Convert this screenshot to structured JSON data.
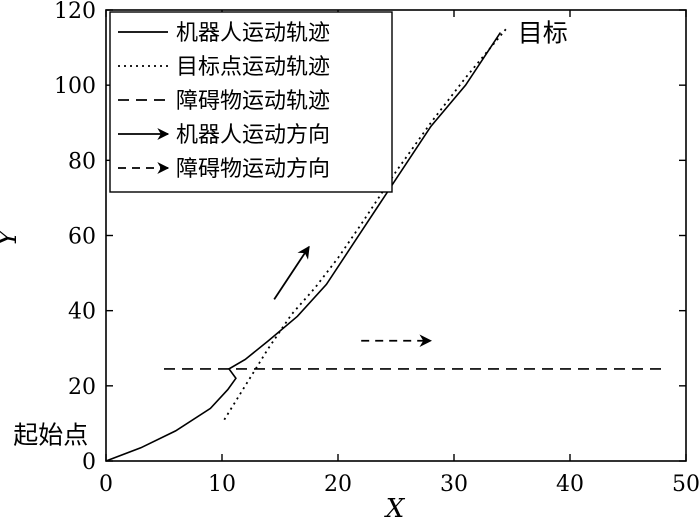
{
  "chart_data": {
    "type": "line",
    "xlabel": "X",
    "ylabel": "Y",
    "xlim": [
      0,
      50
    ],
    "ylim": [
      0,
      120
    ],
    "xticks": [
      0,
      10,
      20,
      30,
      40,
      50
    ],
    "yticks": [
      0,
      20,
      40,
      60,
      80,
      100,
      120
    ],
    "grid": false,
    "legend_position": "top-left",
    "series": [
      {
        "name": "机器人运动轨迹",
        "style": "solid",
        "x": [
          0,
          3,
          6,
          9,
          10.5,
          11.2,
          10.6,
          12,
          14,
          16.5,
          19,
          22,
          25,
          28,
          31,
          34
        ],
        "y": [
          0,
          3.5,
          8,
          14,
          19,
          22,
          24.5,
          27,
          32,
          38.5,
          47,
          61,
          75,
          89,
          100,
          114
        ]
      },
      {
        "name": "目标点运动轨迹",
        "style": "dotted",
        "x": [
          10.2,
          12,
          14,
          16,
          18,
          20,
          22,
          25,
          28,
          31,
          34.5
        ],
        "y": [
          11,
          20,
          30,
          39,
          46,
          54,
          63,
          77,
          90,
          102,
          115
        ]
      },
      {
        "name": "障碍物运动轨迹",
        "style": "dashed",
        "x": [
          5,
          48
        ],
        "y": [
          24.5,
          24.5
        ]
      }
    ],
    "arrows": [
      {
        "name": "机器人运动方向",
        "style": "solid",
        "from": [
          14.5,
          43
        ],
        "to": [
          17.5,
          57
        ]
      },
      {
        "name": "障碍物运动方向",
        "style": "dashed",
        "from": [
          22,
          32
        ],
        "to": [
          28,
          32
        ]
      }
    ],
    "annotations": [
      {
        "text": "目标",
        "x": 35.5,
        "y": 114
      },
      {
        "text": "起始点",
        "x": -8,
        "y": 7
      }
    ]
  }
}
